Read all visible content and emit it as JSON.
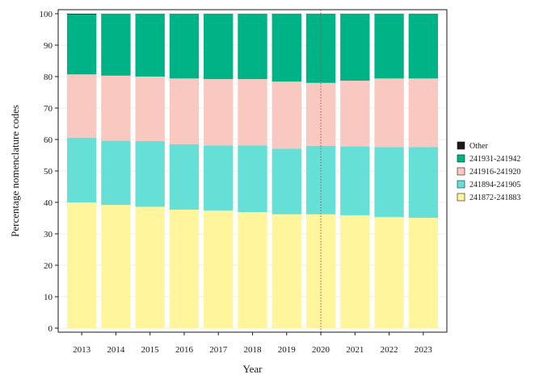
{
  "chart_data": {
    "type": "bar",
    "stacked": true,
    "xlabel": "Year",
    "ylabel": "Percentage nomenclature codes",
    "ylim": [
      0,
      100
    ],
    "yticks": [
      0,
      10,
      20,
      30,
      40,
      50,
      60,
      70,
      80,
      90,
      100
    ],
    "categories": [
      "2013",
      "2014",
      "2015",
      "2016",
      "2017",
      "2018",
      "2019",
      "2020",
      "2021",
      "2022",
      "2023"
    ],
    "series": [
      {
        "name": "241872-241883",
        "color": "#fff59d",
        "values": [
          40.0,
          39.2,
          38.6,
          37.7,
          37.4,
          36.9,
          36.2,
          36.2,
          35.9,
          35.3,
          35.1
        ]
      },
      {
        "name": "241894-241905",
        "color": "#66e0d6",
        "values": [
          20.6,
          20.4,
          20.9,
          20.8,
          20.7,
          21.2,
          20.9,
          21.8,
          21.9,
          22.3,
          22.5
        ]
      },
      {
        "name": "241916-241920",
        "color": "#f9c8c1",
        "values": [
          20.1,
          20.7,
          20.5,
          20.9,
          21.1,
          21.1,
          21.3,
          20.0,
          20.9,
          21.8,
          21.8
        ]
      },
      {
        "name": "241931-241942",
        "color": "#00b386",
        "values": [
          19.1,
          19.7,
          20.0,
          20.6,
          20.8,
          20.8,
          21.6,
          22.0,
          21.3,
          20.6,
          20.6
        ]
      },
      {
        "name": "Other",
        "color": "#1a1a1a",
        "values": [
          0.2,
          0,
          0,
          0,
          0,
          0,
          0,
          0,
          0,
          0,
          0
        ]
      }
    ],
    "legend": {
      "position": "right",
      "order": [
        "Other",
        "241931-241942",
        "241916-241920",
        "241894-241905",
        "241872-241883"
      ]
    },
    "vline": {
      "category": "2020",
      "color": "#b05050",
      "style": "dotted"
    },
    "grid": true
  }
}
